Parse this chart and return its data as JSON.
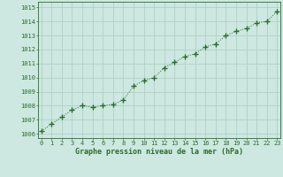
{
  "x": [
    0,
    1,
    2,
    3,
    4,
    5,
    6,
    7,
    8,
    9,
    10,
    11,
    12,
    13,
    14,
    15,
    16,
    17,
    18,
    19,
    20,
    21,
    22,
    23
  ],
  "y": [
    1006.2,
    1006.7,
    1007.2,
    1007.7,
    1008.0,
    1007.9,
    1008.0,
    1008.1,
    1008.4,
    1009.4,
    1009.8,
    1010.0,
    1010.7,
    1011.1,
    1011.5,
    1011.7,
    1012.2,
    1012.4,
    1013.0,
    1013.3,
    1013.5,
    1013.9,
    1014.0,
    1014.7
  ],
  "line_color": "#2d6b2d",
  "marker_color": "#2d6b2d",
  "bg_color": "#cce8e0",
  "grid_color": "#b0d0c8",
  "xlabel": "Graphe pression niveau de la mer (hPa)",
  "xlabel_color": "#2d6b2d",
  "ylabel_ticks": [
    1006,
    1007,
    1008,
    1009,
    1010,
    1011,
    1012,
    1013,
    1014,
    1015
  ],
  "xtick_labels": [
    "0",
    "1",
    "2",
    "3",
    "4",
    "5",
    "6",
    "7",
    "8",
    "9",
    "10",
    "11",
    "12",
    "13",
    "14",
    "15",
    "16",
    "17",
    "18",
    "19",
    "20",
    "21",
    "22",
    "23"
  ],
  "xlim": [
    -0.3,
    23.3
  ],
  "ylim": [
    1005.7,
    1015.4
  ],
  "tick_color": "#2d6b2d",
  "spine_color": "#2d6b2d",
  "tick_fontsize": 5.0,
  "xlabel_fontsize": 6.0
}
